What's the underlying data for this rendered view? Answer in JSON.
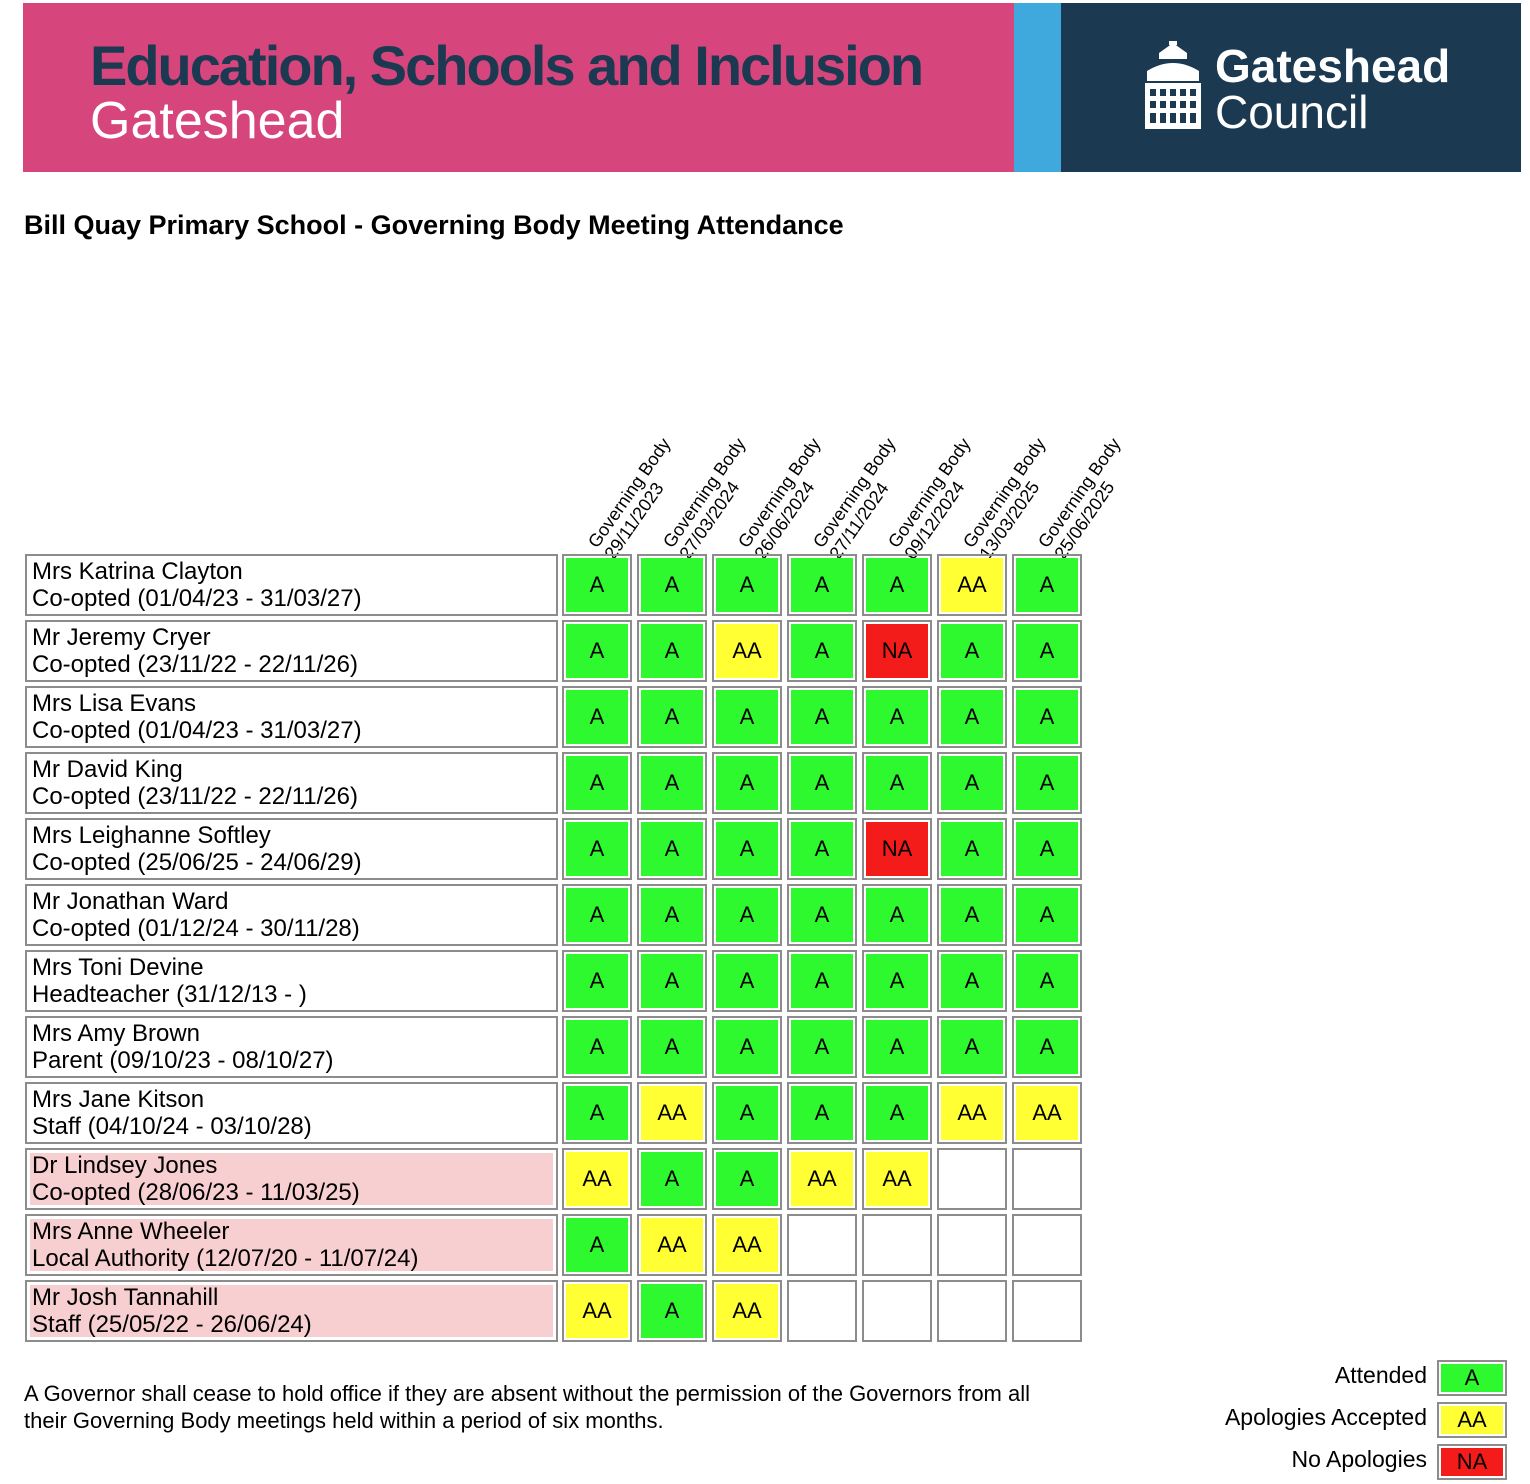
{
  "banner": {
    "title": "Education, Schools and Inclusion",
    "subtitle": "Gateshead",
    "council_line1": "Gateshead",
    "council_line2": "Council",
    "colors": {
      "pink": "#d6457b",
      "blue": "#3fa9de",
      "navy": "#1b3a52"
    }
  },
  "page_title": "Bill Quay Primary School - Governing Body Meeting Attendance",
  "meetings": [
    {
      "type": "Governing Body",
      "date": "29/11/2023"
    },
    {
      "type": "Governing Body",
      "date": "27/03/2024"
    },
    {
      "type": "Governing Body",
      "date": "26/06/2024"
    },
    {
      "type": "Governing Body",
      "date": "27/11/2024"
    },
    {
      "type": "Governing Body",
      "date": "09/12/2024"
    },
    {
      "type": "Governing Body",
      "date": "13/03/2025"
    },
    {
      "type": "Governing Body",
      "date": "25/06/2025"
    }
  ],
  "governors": [
    {
      "name": "Mrs Katrina Clayton",
      "role": "Co-opted (01/04/23 - 31/03/27)",
      "former": false,
      "attendance": [
        "A",
        "A",
        "A",
        "A",
        "A",
        "AA",
        "A"
      ]
    },
    {
      "name": "Mr Jeremy Cryer",
      "role": "Co-opted (23/11/22 - 22/11/26)",
      "former": false,
      "attendance": [
        "A",
        "A",
        "AA",
        "A",
        "NA",
        "A",
        "A"
      ]
    },
    {
      "name": "Mrs Lisa Evans",
      "role": "Co-opted (01/04/23 - 31/03/27)",
      "former": false,
      "attendance": [
        "A",
        "A",
        "A",
        "A",
        "A",
        "A",
        "A"
      ]
    },
    {
      "name": "Mr David King",
      "role": "Co-opted (23/11/22 - 22/11/26)",
      "former": false,
      "attendance": [
        "A",
        "A",
        "A",
        "A",
        "A",
        "A",
        "A"
      ]
    },
    {
      "name": "Mrs Leighanne Softley",
      "role": "Co-opted (25/06/25 - 24/06/29)",
      "former": false,
      "attendance": [
        "A",
        "A",
        "A",
        "A",
        "NA",
        "A",
        "A"
      ]
    },
    {
      "name": "Mr Jonathan Ward",
      "role": "Co-opted (01/12/24 - 30/11/28)",
      "former": false,
      "attendance": [
        "A",
        "A",
        "A",
        "A",
        "A",
        "A",
        "A"
      ]
    },
    {
      "name": "Mrs Toni Devine",
      "role": "Headteacher (31/12/13 - )",
      "former": false,
      "attendance": [
        "A",
        "A",
        "A",
        "A",
        "A",
        "A",
        "A"
      ]
    },
    {
      "name": "Mrs Amy Brown",
      "role": "Parent (09/10/23 - 08/10/27)",
      "former": false,
      "attendance": [
        "A",
        "A",
        "A",
        "A",
        "A",
        "A",
        "A"
      ]
    },
    {
      "name": "Mrs Jane Kitson",
      "role": "Staff (04/10/24 - 03/10/28)",
      "former": false,
      "attendance": [
        "A",
        "AA",
        "A",
        "A",
        "A",
        "AA",
        "AA"
      ]
    },
    {
      "name": "Dr Lindsey Jones",
      "role": "Co-opted (28/06/23 - 11/03/25)",
      "former": true,
      "attendance": [
        "AA",
        "A",
        "A",
        "AA",
        "AA",
        "",
        ""
      ]
    },
    {
      "name": "Mrs Anne Wheeler",
      "role": "Local Authority (12/07/20 - 11/07/24)",
      "former": true,
      "attendance": [
        "A",
        "AA",
        "AA",
        "",
        "",
        "",
        ""
      ]
    },
    {
      "name": "Mr Josh Tannahill",
      "role": "Staff (25/05/22 - 26/06/24)",
      "former": true,
      "attendance": [
        "AA",
        "A",
        "AA",
        "",
        "",
        "",
        ""
      ]
    }
  ],
  "status_colors": {
    "A": "#2ef92e",
    "AA": "#ffff33",
    "NA": "#f41b1b",
    "": "#ffffff"
  },
  "footnote": "A Governor shall cease to hold office if they are absent without the permission of the Governors from all their Governing Body meetings held within a period of six months.",
  "legend": [
    {
      "label": "Attended",
      "code": "A"
    },
    {
      "label": "Apologies Accepted",
      "code": "AA"
    },
    {
      "label": "No Apologies",
      "code": "NA"
    }
  ]
}
